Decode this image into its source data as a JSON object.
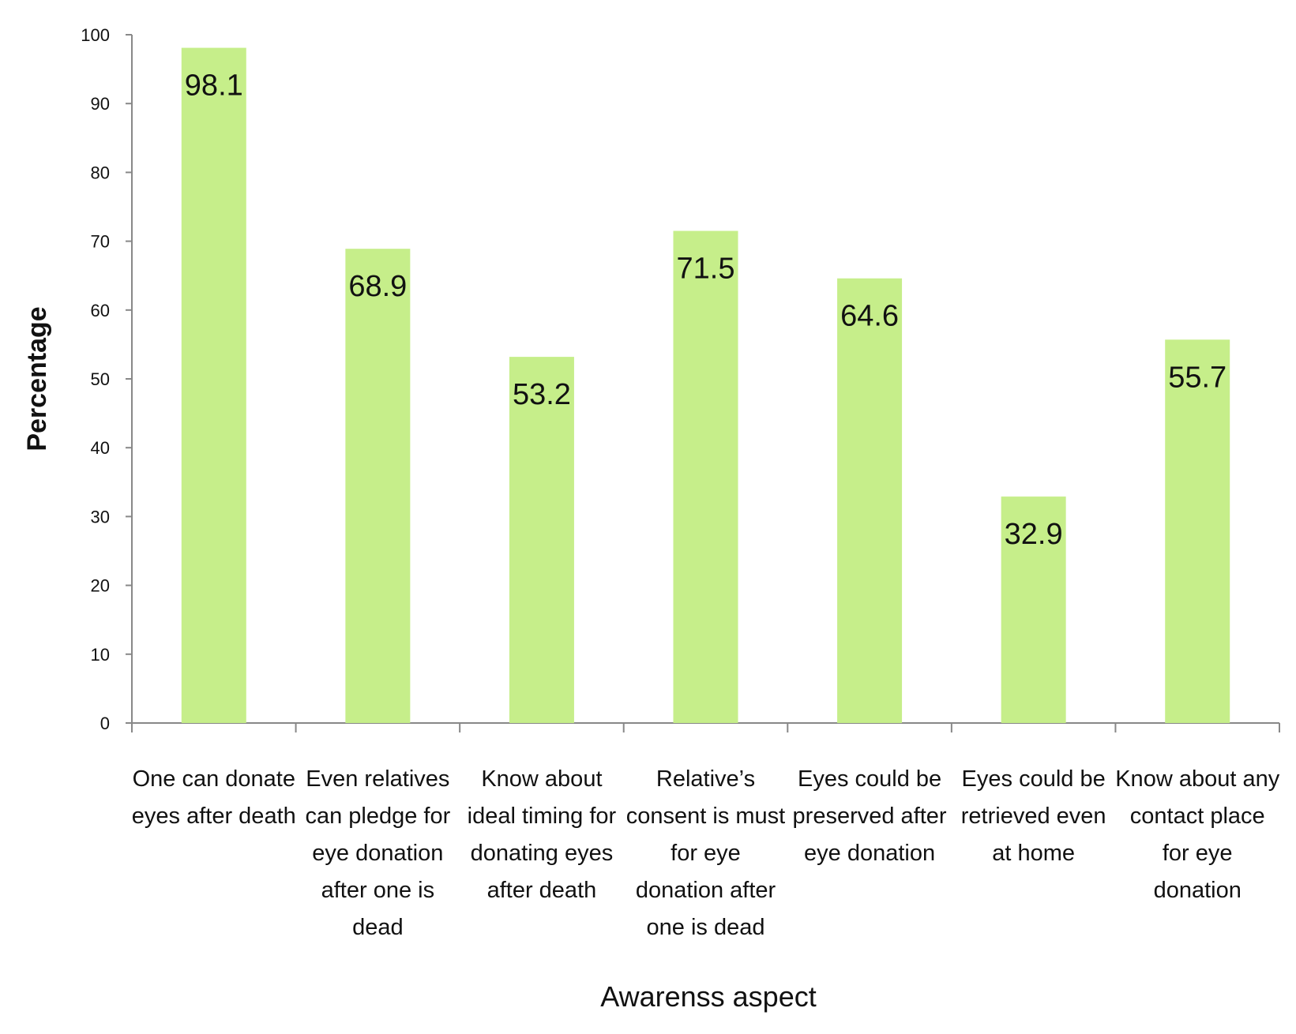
{
  "chart_data": {
    "type": "bar",
    "categories": [
      [
        "One can donate",
        "eyes after death"
      ],
      [
        "Even relatives",
        "can pledge for",
        "eye donation",
        "after one is",
        "dead"
      ],
      [
        "Know about",
        "ideal timing for",
        "donating eyes",
        "after death"
      ],
      [
        "Relative’s",
        "consent is must",
        "for eye",
        "donation after",
        "one is dead"
      ],
      [
        "Eyes could be",
        "preserved after",
        "eye donation"
      ],
      [
        "Eyes could be",
        "retrieved even",
        "at home"
      ],
      [
        "Know about any",
        "contact place",
        "for eye",
        "donation"
      ]
    ],
    "values": [
      98.1,
      68.9,
      53.2,
      71.5,
      64.6,
      32.9,
      55.7
    ],
    "data_labels": [
      "98.1",
      "68.9",
      "53.2",
      "71.5",
      "64.6",
      "32.9",
      "55.7"
    ],
    "title": "",
    "xlabel": "Awarenss aspect",
    "ylabel": "Percentage",
    "ylim": [
      0,
      100
    ],
    "yticks": [
      0,
      10,
      20,
      30,
      40,
      50,
      60,
      70,
      80,
      90,
      100
    ],
    "ytick_labels": [
      "0",
      "10",
      "20",
      "30",
      "40",
      "50",
      "60",
      "70",
      "80",
      "90",
      "100"
    ],
    "grid": false,
    "legend": "none",
    "colors": {
      "bar": "#c6ee8a",
      "axis": "#888888",
      "text": "#111111",
      "background": "#ffffff"
    }
  }
}
